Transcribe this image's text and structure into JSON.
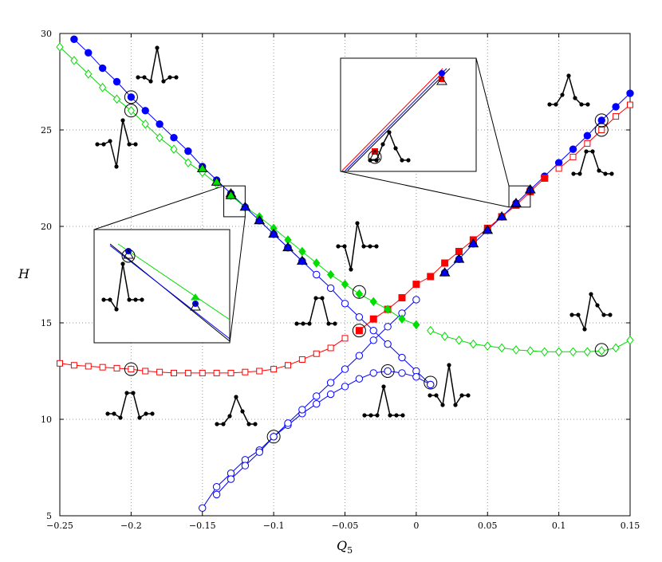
{
  "chart_data": {
    "type": "line",
    "title": "",
    "xlabel": "Q5",
    "ylabel": "H",
    "xlim": [
      -0.25,
      0.15
    ],
    "ylim": [
      5,
      30
    ],
    "grid": true,
    "x_ticks": [
      "-0.25",
      "-0.2",
      "-0.15",
      "-0.1",
      "-0.05",
      "0",
      "0.05",
      "0.1",
      "0.15"
    ],
    "y_ticks": [
      "5",
      "10",
      "15",
      "20",
      "25",
      "30"
    ],
    "colors": {
      "blue": "#0000ff",
      "red": "#ff0000",
      "green": "#00dd00",
      "black": "#000000"
    },
    "series": [
      {
        "color": "blue",
        "marker": "filled-circle",
        "x": [
          -0.24,
          -0.23,
          -0.22,
          -0.21,
          -0.2,
          -0.19,
          -0.18,
          -0.17,
          -0.16,
          -0.15,
          -0.14,
          -0.13,
          -0.12,
          -0.11,
          -0.1,
          -0.09,
          -0.08
        ],
        "y": [
          29.7,
          29.0,
          28.2,
          27.5,
          26.7,
          26.0,
          25.3,
          24.6,
          23.9,
          23.1,
          22.4,
          21.7,
          21.0,
          20.3,
          19.6,
          18.9,
          18.2
        ]
      },
      {
        "color": "blue",
        "marker": "filled-circle",
        "x": [
          0.02,
          0.03,
          0.04,
          0.05,
          0.06,
          0.07,
          0.08,
          0.09,
          0.1,
          0.11,
          0.12,
          0.13,
          0.14,
          0.15
        ],
        "y": [
          17.6,
          18.3,
          19.1,
          19.8,
          20.5,
          21.2,
          21.9,
          22.6,
          23.3,
          24.0,
          24.7,
          25.5,
          26.2,
          26.9
        ]
      },
      {
        "color": "blue",
        "marker": "open-circle",
        "x": [
          -0.11,
          -0.1,
          -0.09,
          -0.08,
          -0.07,
          -0.06,
          -0.05,
          -0.04,
          -0.03,
          -0.02,
          -0.01,
          0.0,
          0.01
        ],
        "y": [
          20.3,
          19.6,
          18.9,
          18.2,
          17.5,
          16.8,
          16.0,
          15.3,
          14.6,
          13.9,
          13.2,
          12.5,
          11.8
        ]
      },
      {
        "color": "blue",
        "marker": "open-circle",
        "x": [
          -0.15,
          -0.14,
          -0.13,
          -0.12,
          -0.11,
          -0.1,
          -0.09,
          -0.08,
          -0.07,
          -0.06,
          -0.05,
          -0.04,
          -0.03,
          -0.02,
          -0.01,
          0.0,
          0.01
        ],
        "y": [
          5.4,
          6.5,
          7.2,
          7.9,
          8.4,
          9.1,
          9.7,
          10.3,
          10.8,
          11.3,
          11.7,
          12.1,
          12.4,
          12.5,
          12.4,
          12.2,
          11.8
        ]
      },
      {
        "color": "blue",
        "marker": "open-circle",
        "x": [
          -0.14,
          -0.13,
          -0.12,
          -0.11,
          -0.1,
          -0.09,
          -0.08,
          -0.07,
          -0.06,
          -0.05,
          -0.04,
          -0.03,
          -0.02,
          -0.01,
          0.0
        ],
        "y": [
          6.1,
          6.9,
          7.6,
          8.3,
          9.1,
          9.8,
          10.5,
          11.2,
          11.9,
          12.6,
          13.3,
          14.1,
          14.8,
          15.5,
          16.2
        ]
      },
      {
        "color": "red",
        "marker": "open-square",
        "x": [
          -0.25,
          -0.24,
          -0.23,
          -0.22,
          -0.21,
          -0.2,
          -0.19,
          -0.18,
          -0.17,
          -0.16,
          -0.15,
          -0.14,
          -0.13,
          -0.12,
          -0.11,
          -0.1,
          -0.09,
          -0.08,
          -0.07,
          -0.06,
          -0.05
        ],
        "y": [
          12.9,
          12.8,
          12.75,
          12.7,
          12.65,
          12.6,
          12.5,
          12.45,
          12.4,
          12.4,
          12.4,
          12.4,
          12.4,
          12.45,
          12.5,
          12.6,
          12.8,
          13.1,
          13.4,
          13.7,
          14.2
        ]
      },
      {
        "color": "red",
        "marker": "open-square",
        "x": [
          0.1,
          0.11,
          0.12,
          0.13,
          0.14,
          0.15
        ],
        "y": [
          23.0,
          23.6,
          24.3,
          25.0,
          25.7,
          26.3
        ]
      },
      {
        "color": "red",
        "marker": "filled-square",
        "x": [
          -0.04,
          -0.03,
          -0.02,
          -0.01,
          0.0,
          0.01,
          0.02,
          0.03,
          0.04,
          0.05,
          0.06,
          0.07,
          0.08,
          0.09
        ],
        "y": [
          14.6,
          15.2,
          15.7,
          16.3,
          17.0,
          17.4,
          18.1,
          18.7,
          19.3,
          19.9,
          20.5,
          21.1,
          21.8,
          22.5
        ]
      },
      {
        "color": "green",
        "marker": "open-diamond",
        "x": [
          -0.25,
          -0.24,
          -0.23,
          -0.22,
          -0.21,
          -0.2,
          -0.19,
          -0.18,
          -0.17,
          -0.16,
          -0.15,
          -0.14
        ],
        "y": [
          29.3,
          28.6,
          27.9,
          27.2,
          26.6,
          26.0,
          25.3,
          24.6,
          24.0,
          23.3,
          22.8,
          22.2
        ]
      },
      {
        "color": "green",
        "marker": "filled-diamond",
        "x": [
          -0.13,
          -0.12,
          -0.11,
          -0.1,
          -0.09,
          -0.08,
          -0.07,
          -0.06,
          -0.05,
          -0.04,
          -0.03,
          -0.02,
          -0.01,
          0.0
        ],
        "y": [
          21.6,
          21.0,
          20.5,
          19.9,
          19.3,
          18.7,
          18.1,
          17.5,
          17.0,
          16.5,
          16.1,
          15.7,
          15.2,
          14.9
        ]
      },
      {
        "color": "green",
        "marker": "open-diamond",
        "x": [
          0.01,
          0.02,
          0.03,
          0.04,
          0.05,
          0.06,
          0.07,
          0.08,
          0.09,
          0.1,
          0.11,
          0.12,
          0.13,
          0.14,
          0.15
        ],
        "y": [
          14.6,
          14.3,
          14.1,
          13.9,
          13.8,
          13.7,
          13.6,
          13.55,
          13.5,
          13.5,
          13.5,
          13.5,
          13.55,
          13.7,
          14.1
        ]
      },
      {
        "color": "blue",
        "marker": "triangle",
        "fill": "blue",
        "x": [
          -0.13,
          -0.12,
          -0.11,
          -0.1,
          -0.09,
          -0.08,
          0.02,
          0.03,
          0.04,
          0.05,
          0.06,
          0.07,
          0.08
        ],
        "y": [
          21.7,
          21.0,
          20.3,
          19.6,
          18.9,
          18.2,
          17.6,
          18.3,
          19.1,
          19.8,
          20.5,
          21.2,
          21.9
        ]
      },
      {
        "color": "green",
        "marker": "triangle",
        "fill": "green",
        "x": [
          -0.15,
          -0.14,
          -0.13
        ],
        "y": [
          23.0,
          22.3,
          21.6
        ]
      }
    ],
    "circled_points": [
      {
        "x": -0.2,
        "y": 26.7
      },
      {
        "x": -0.2,
        "y": 26.0
      },
      {
        "x": -0.2,
        "y": 12.6
      },
      {
        "x": -0.1,
        "y": 9.1
      },
      {
        "x": -0.04,
        "y": 16.6
      },
      {
        "x": -0.04,
        "y": 14.6
      },
      {
        "x": -0.02,
        "y": 12.5
      },
      {
        "x": 0.01,
        "y": 11.9
      },
      {
        "x": 0.13,
        "y": 25.5
      },
      {
        "x": 0.13,
        "y": 25.0
      },
      {
        "x": 0.13,
        "y": 13.6
      }
    ],
    "zoom_boxes": [
      {
        "x": [
          -0.135,
          -0.12
        ],
        "y": [
          20.5,
          22.1
        ],
        "inset": "left"
      },
      {
        "x": [
          0.065,
          0.08
        ],
        "y": [
          21.0,
          22.1
        ],
        "inset": "right"
      }
    ]
  }
}
